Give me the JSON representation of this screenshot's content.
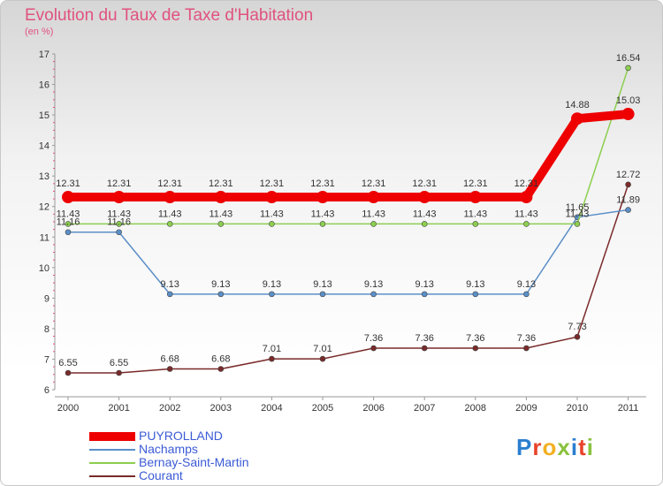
{
  "header": {
    "title": "Evolution du Taux de Taxe d'Habitation",
    "subtitle": "(en %)"
  },
  "chart_data": {
    "type": "line",
    "title": "Evolution du Taux de Taxe d'Habitation",
    "ylabel": "(en %)",
    "xlabel": "",
    "x": [
      "2000",
      "2001",
      "2002",
      "2003",
      "2004",
      "2005",
      "2006",
      "2007",
      "2008",
      "2009",
      "2010",
      "2011"
    ],
    "ylim": [
      6,
      17
    ],
    "yticks": [
      6,
      7,
      8,
      9,
      10,
      11,
      12,
      13,
      14,
      15,
      16,
      17
    ],
    "grid": false,
    "legend_position": "bottom-left",
    "series": [
      {
        "name": "PUYROLLAND",
        "color": "#ee0000",
        "values": [
          12.31,
          12.31,
          12.31,
          12.31,
          12.31,
          12.31,
          12.31,
          12.31,
          12.31,
          12.31,
          14.88,
          15.03
        ],
        "labels": [
          "12.31",
          "12.31",
          "12.31",
          "12.31",
          "12.31",
          "12.31",
          "12.31",
          "12.31",
          "12.31",
          "12.31",
          "14.88",
          "15.03"
        ]
      },
      {
        "name": "Nachamps",
        "color": "#5b8fc8",
        "values": [
          11.16,
          11.16,
          9.13,
          9.13,
          9.13,
          9.13,
          9.13,
          9.13,
          9.13,
          9.13,
          11.65,
          11.89
        ],
        "labels": [
          "11.16",
          "11.16",
          "9.13",
          "9.13",
          "9.13",
          "9.13",
          "9.13",
          "9.13",
          "9.13",
          "9.13",
          "11.65",
          "11.89"
        ]
      },
      {
        "name": "Bernay-Saint-Martin",
        "color": "#8ccf4f",
        "values": [
          11.43,
          11.43,
          11.43,
          11.43,
          11.43,
          11.43,
          11.43,
          11.43,
          11.43,
          11.43,
          11.43,
          16.54
        ],
        "labels": [
          "11.43",
          "11.43",
          "11.43",
          "11.43",
          "11.43",
          "11.43",
          "11.43",
          "11.43",
          "11.43",
          "11.43",
          "11.43",
          "16.54"
        ]
      },
      {
        "name": "Courant",
        "color": "#7a2a2a",
        "values": [
          6.55,
          6.55,
          6.68,
          6.68,
          7.01,
          7.01,
          7.36,
          7.36,
          7.36,
          7.36,
          7.73,
          12.72
        ],
        "labels": [
          "6.55",
          "6.55",
          "6.68",
          "6.68",
          "7.01",
          "7.01",
          "7.36",
          "7.36",
          "7.36",
          "7.36",
          "7.73",
          "12.72"
        ]
      }
    ]
  },
  "logo": {
    "text": "Proxiti",
    "letters": [
      "P",
      "r",
      "o",
      "x",
      "i",
      "t",
      "i"
    ],
    "colors": [
      "#2a7fd0",
      "#e8432a",
      "#f2b022",
      "#8ac23c",
      "#2a7fd0",
      "#e8432a",
      "#8ac23c"
    ]
  }
}
